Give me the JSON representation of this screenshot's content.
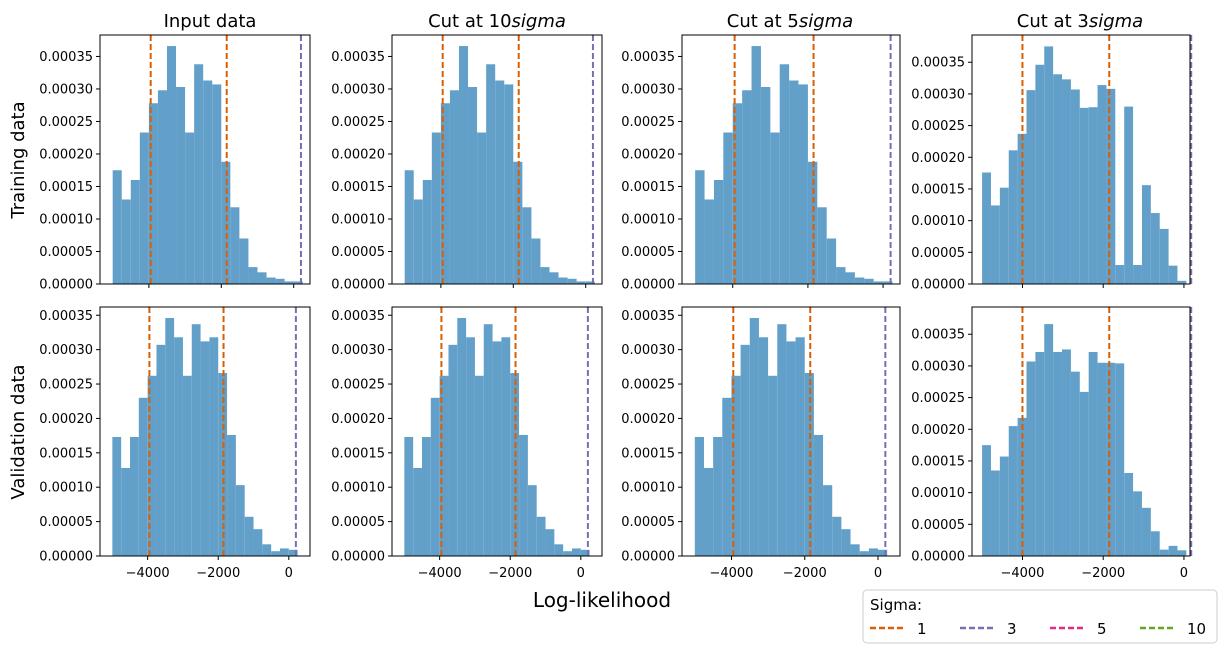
{
  "figure": {
    "xlabel": "Log-likelihood",
    "row_labels": [
      "Training data",
      "Validation data"
    ],
    "column_titles": [
      {
        "text": "Input data",
        "sigma": false
      },
      {
        "text": "Cut at 10",
        "sigma": true
      },
      {
        "text": "Cut at 5",
        "sigma": true
      },
      {
        "text": "Cut at 3",
        "sigma": true
      }
    ],
    "sigma_word": "sigma"
  },
  "legend": {
    "title": "Sigma:",
    "entries": [
      {
        "label": "1",
        "color": "#d95f02"
      },
      {
        "label": "3",
        "color": "#7570b3"
      },
      {
        "label": "5",
        "color": "#e7298a"
      },
      {
        "label": "10",
        "color": "#66a61e"
      }
    ]
  },
  "colors": {
    "bar": "#62a0ca",
    "sigma1": "#d95f02",
    "sigma3": "#7570b3"
  },
  "chart_data": [
    {
      "type": "bar",
      "panel": "training-input",
      "title": "Input data",
      "ylabel": "Training data",
      "bin_edges": [
        -5000,
        -4750,
        -4500,
        -4250,
        -4000,
        -3750,
        -3500,
        -3250,
        -3000,
        -2750,
        -2500,
        -2250,
        -2000,
        -1750,
        -1500,
        -1250,
        -1000,
        -750,
        -500,
        -250,
        0,
        250
      ],
      "values": [
        0.000175,
        0.00013,
        0.00016,
        0.000233,
        0.000278,
        0.000298,
        0.000366,
        0.000303,
        0.000233,
        0.000338,
        0.000313,
        0.000307,
        0.000188,
        0.000118,
        7e-05,
        2.6e-05,
        1.8e-05,
        1e-05,
        8e-06,
        4e-06,
        4e-06
      ],
      "vlines": [
        {
          "x": -3950,
          "sigma": "1"
        },
        {
          "x": -1850,
          "sigma": "1"
        },
        {
          "x": 200,
          "sigma": "3"
        }
      ],
      "xlim": [
        -5350,
        450
      ],
      "ylim": [
        0,
        0.000383
      ],
      "yticks": [
        "0.00000",
        "0.00005",
        "0.00010",
        "0.00015",
        "0.00020",
        "0.00025",
        "0.00030",
        "0.00035"
      ],
      "xticks": [
        "−4000",
        "−2000",
        "0"
      ]
    },
    {
      "type": "bar",
      "panel": "training-10sigma",
      "title": "Cut at 10sigma",
      "ylabel": "",
      "bin_edges": [
        -5000,
        -4750,
        -4500,
        -4250,
        -4000,
        -3750,
        -3500,
        -3250,
        -3000,
        -2750,
        -2500,
        -2250,
        -2000,
        -1750,
        -1500,
        -1250,
        -1000,
        -750,
        -500,
        -250,
        0,
        250
      ],
      "values": [
        0.000175,
        0.00013,
        0.00016,
        0.000233,
        0.000278,
        0.000298,
        0.000366,
        0.000303,
        0.000233,
        0.000338,
        0.000313,
        0.000307,
        0.000188,
        0.000118,
        7e-05,
        2.6e-05,
        1.8e-05,
        1e-05,
        8e-06,
        4e-06,
        4e-06
      ],
      "vlines": [
        {
          "x": -3950,
          "sigma": "1"
        },
        {
          "x": -1850,
          "sigma": "1"
        },
        {
          "x": 200,
          "sigma": "3"
        }
      ],
      "xlim": [
        -5350,
        450
      ],
      "ylim": [
        0,
        0.000383
      ],
      "yticks": [
        "0.00000",
        "0.00005",
        "0.00010",
        "0.00015",
        "0.00020",
        "0.00025",
        "0.00030",
        "0.00035"
      ],
      "xticks": [
        "−4000",
        "−2000",
        "0"
      ]
    },
    {
      "type": "bar",
      "panel": "training-5sigma",
      "title": "Cut at 5sigma",
      "ylabel": "",
      "bin_edges": [
        -5000,
        -4750,
        -4500,
        -4250,
        -4000,
        -3750,
        -3500,
        -3250,
        -3000,
        -2750,
        -2500,
        -2250,
        -2000,
        -1750,
        -1500,
        -1250,
        -1000,
        -750,
        -500,
        -250,
        0,
        250
      ],
      "values": [
        0.000175,
        0.00013,
        0.00016,
        0.000233,
        0.000278,
        0.000298,
        0.000366,
        0.000303,
        0.000233,
        0.000338,
        0.000313,
        0.000307,
        0.000188,
        0.000118,
        7e-05,
        2.6e-05,
        1.8e-05,
        1e-05,
        8e-06,
        4e-06,
        4e-06
      ],
      "vlines": [
        {
          "x": -3950,
          "sigma": "1"
        },
        {
          "x": -1850,
          "sigma": "1"
        },
        {
          "x": 200,
          "sigma": "3"
        }
      ],
      "xlim": [
        -5350,
        450
      ],
      "ylim": [
        0,
        0.000383
      ],
      "yticks": [
        "0.00000",
        "0.00005",
        "0.00010",
        "0.00015",
        "0.00020",
        "0.00025",
        "0.00030",
        "0.00035"
      ],
      "xticks": [
        "−4000",
        "−2000",
        "0"
      ]
    },
    {
      "type": "bar",
      "panel": "training-3sigma",
      "title": "Cut at 3sigma",
      "ylabel": "",
      "bin_edges": [
        -5000,
        -4780,
        -4560,
        -4340,
        -4120,
        -3900,
        -3680,
        -3460,
        -3240,
        -3020,
        -2800,
        -2580,
        -2360,
        -2140,
        -1920,
        -1700,
        -1480,
        -1260,
        -1040,
        -820,
        -600,
        -380,
        -160,
        60
      ],
      "values": [
        0.000176,
        0.000124,
        0.000152,
        0.000211,
        0.000237,
        0.000306,
        0.000346,
        0.000375,
        0.000331,
        0.000323,
        0.000307,
        0.000278,
        0.000279,
        0.000314,
        0.000308,
        3e-05,
        0.00028,
        3e-05,
        0.000156,
        0.000112,
        8.7e-05,
        2.9e-05,
        5e-06,
        2e-05
      ],
      "vlines": [
        {
          "x": -4000,
          "sigma": "1"
        },
        {
          "x": -1850,
          "sigma": "1"
        },
        {
          "x": 180,
          "sigma": "3"
        }
      ],
      "xlim": [
        -5250,
        150
      ],
      "ylim": [
        0,
        0.000393
      ],
      "yticks": [
        "0.00000",
        "0.00005",
        "0.00010",
        "0.00015",
        "0.00020",
        "0.00025",
        "0.00030",
        "0.00035"
      ],
      "xticks": [
        "−4000",
        "−2000",
        "0"
      ]
    },
    {
      "type": "bar",
      "panel": "validation-input",
      "title": "",
      "ylabel": "Validation data",
      "bin_edges": [
        -5000,
        -4750,
        -4500,
        -4250,
        -4000,
        -3750,
        -3500,
        -3250,
        -3000,
        -2750,
        -2500,
        -2250,
        -2000,
        -1750,
        -1500,
        -1250,
        -1000,
        -750,
        -500,
        -250,
        0,
        250
      ],
      "values": [
        0.000173,
        0.000128,
        0.000173,
        0.00023,
        0.000262,
        0.000307,
        0.000346,
        0.000318,
        0.000262,
        0.000337,
        0.000312,
        0.000318,
        0.000266,
        0.000176,
        0.000103,
        5.7e-05,
        3.9e-05,
        1.7e-05,
        7e-06,
        1.1e-05,
        9e-06
      ],
      "vlines": [
        {
          "x": -3950,
          "sigma": "1"
        },
        {
          "x": -1850,
          "sigma": "1"
        },
        {
          "x": 200,
          "sigma": "3"
        }
      ],
      "xlim": [
        -5350,
        600
      ],
      "ylim": [
        0,
        0.000362
      ],
      "yticks": [
        "0.00000",
        "0.00005",
        "0.00010",
        "0.00015",
        "0.00020",
        "0.00025",
        "0.00030",
        "0.00035"
      ],
      "xticks": [
        "−4000",
        "−2000",
        "0"
      ]
    },
    {
      "type": "bar",
      "panel": "validation-10sigma",
      "title": "",
      "ylabel": "",
      "bin_edges": [
        -5000,
        -4750,
        -4500,
        -4250,
        -4000,
        -3750,
        -3500,
        -3250,
        -3000,
        -2750,
        -2500,
        -2250,
        -2000,
        -1750,
        -1500,
        -1250,
        -1000,
        -750,
        -500,
        -250,
        0,
        250
      ],
      "values": [
        0.000173,
        0.000128,
        0.000173,
        0.00023,
        0.000262,
        0.000307,
        0.000346,
        0.000318,
        0.000262,
        0.000337,
        0.000312,
        0.000318,
        0.000266,
        0.000176,
        0.000103,
        5.7e-05,
        3.9e-05,
        1.7e-05,
        7e-06,
        1.1e-05,
        9e-06
      ],
      "vlines": [
        {
          "x": -3950,
          "sigma": "1"
        },
        {
          "x": -1850,
          "sigma": "1"
        },
        {
          "x": 200,
          "sigma": "3"
        }
      ],
      "xlim": [
        -5350,
        600
      ],
      "ylim": [
        0,
        0.000362
      ],
      "yticks": [
        "0.00000",
        "0.00005",
        "0.00010",
        "0.00015",
        "0.00020",
        "0.00025",
        "0.00030",
        "0.00035"
      ],
      "xticks": [
        "−4000",
        "−2000",
        "0"
      ]
    },
    {
      "type": "bar",
      "panel": "validation-5sigma",
      "title": "",
      "ylabel": "",
      "bin_edges": [
        -5000,
        -4750,
        -4500,
        -4250,
        -4000,
        -3750,
        -3500,
        -3250,
        -3000,
        -2750,
        -2500,
        -2250,
        -2000,
        -1750,
        -1500,
        -1250,
        -1000,
        -750,
        -500,
        -250,
        0,
        250
      ],
      "values": [
        0.000173,
        0.000128,
        0.000173,
        0.00023,
        0.000262,
        0.000307,
        0.000346,
        0.000318,
        0.000262,
        0.000337,
        0.000312,
        0.000318,
        0.000266,
        0.000176,
        0.000103,
        5.7e-05,
        3.9e-05,
        1.7e-05,
        7e-06,
        1.1e-05,
        9e-06
      ],
      "vlines": [
        {
          "x": -3950,
          "sigma": "1"
        },
        {
          "x": -1850,
          "sigma": "1"
        },
        {
          "x": 200,
          "sigma": "3"
        }
      ],
      "xlim": [
        -5350,
        600
      ],
      "ylim": [
        0,
        0.000362
      ],
      "yticks": [
        "0.00000",
        "0.00005",
        "0.00010",
        "0.00015",
        "0.00020",
        "0.00025",
        "0.00030",
        "0.00035"
      ],
      "xticks": [
        "−4000",
        "−2000",
        "0"
      ]
    },
    {
      "type": "bar",
      "panel": "validation-3sigma",
      "title": "",
      "ylabel": "",
      "bin_edges": [
        -5000,
        -4780,
        -4560,
        -4340,
        -4120,
        -3900,
        -3680,
        -3460,
        -3240,
        -3020,
        -2800,
        -2580,
        -2360,
        -2140,
        -1920,
        -1700,
        -1480,
        -1260,
        -1040,
        -820,
        -600,
        -380,
        -160,
        60
      ],
      "values": [
        0.000175,
        0.000135,
        0.000157,
        0.000205,
        0.000218,
        0.000307,
        0.000322,
        0.000366,
        0.000322,
        0.000326,
        0.000291,
        0.000259,
        0.000322,
        0.000305,
        0.000305,
        0.000304,
        0.000131,
        0.000102,
        7.6e-05,
        3.9e-05,
        1e-05,
        1.6e-05,
        9e-06,
        1e-06
      ],
      "vlines": [
        {
          "x": -4000,
          "sigma": "1"
        },
        {
          "x": -1850,
          "sigma": "1"
        },
        {
          "x": 180,
          "sigma": "3"
        }
      ],
      "xlim": [
        -5250,
        150
      ],
      "ylim": [
        0,
        0.000393
      ],
      "yticks": [
        "0.00000",
        "0.00005",
        "0.00010",
        "0.00015",
        "0.00020",
        "0.00025",
        "0.00030",
        "0.00035"
      ],
      "xticks": [
        "−4000",
        "−2000",
        "0"
      ]
    }
  ]
}
